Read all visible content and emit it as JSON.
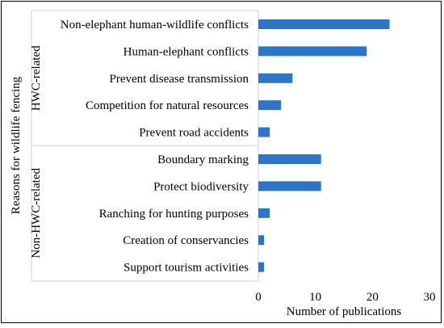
{
  "chart_data": {
    "type": "bar",
    "orientation": "horizontal",
    "ylabel": "Reasons for wildlife fencing",
    "xlabel": "Number of publications",
    "xlim": [
      0,
      30
    ],
    "xticks": [
      0,
      10,
      20,
      30
    ],
    "grid": false,
    "bar_color": "#2E75C8",
    "groups": [
      {
        "name": "HWC-related",
        "categories": [
          "Non-elephant human-wildlife conflicts",
          "Human-elephant conflicts",
          "Prevent disease transmission",
          "Competition for natural resources",
          "Prevent road accidents"
        ],
        "values": [
          23,
          19,
          6,
          4,
          2
        ]
      },
      {
        "name": "Non-HWC-related",
        "categories": [
          "Boundary marking",
          "Protect biodiversity",
          "Ranching for hunting purposes",
          "Creation of conservancies",
          "Support tourism activities"
        ],
        "values": [
          11,
          11,
          2,
          1,
          1
        ]
      }
    ]
  }
}
